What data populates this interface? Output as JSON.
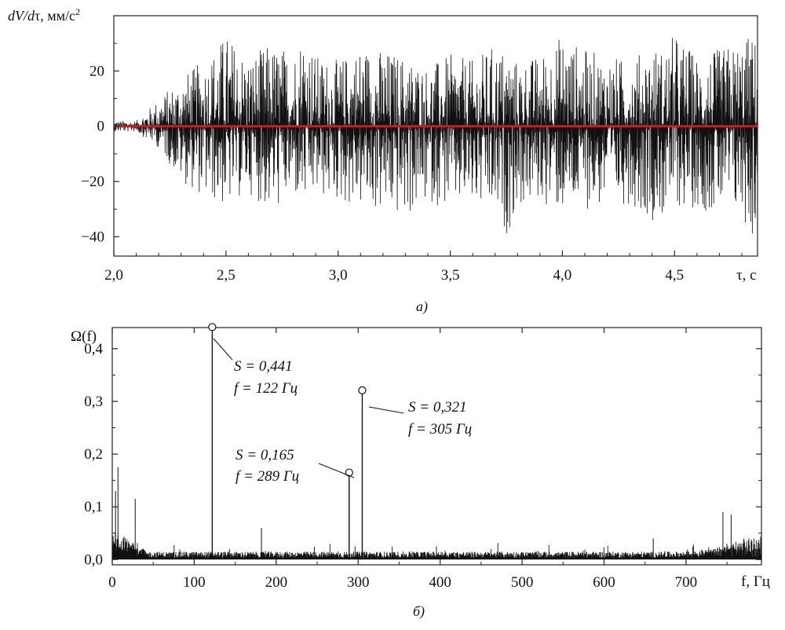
{
  "chart_data": [
    {
      "type": "line",
      "panel_label": "а)",
      "ylabel": "dV/dτ, мм/с²",
      "ylabel_parts": [
        "dV",
        "/",
        "d",
        "τ, мм/с",
        "2"
      ],
      "xlabel": "τ, с",
      "xlim": [
        2.0,
        4.87
      ],
      "ylim": [
        -47,
        40
      ],
      "x_ticks": [
        2.0,
        2.5,
        3.0,
        3.5,
        4.0,
        4.5
      ],
      "x_tick_labels": [
        "2,0",
        "2,5",
        "3,0",
        "3,5",
        "4,0",
        "4,5"
      ],
      "y_ticks": [
        20,
        0,
        -20,
        -40
      ],
      "y_tick_labels": [
        "20",
        "0",
        "−20",
        "−40"
      ],
      "grid": false,
      "series": [
        {
          "role": "signal",
          "color": "#111111",
          "description_points": {
            "x": [
              2.0,
              2.1,
              2.2,
              2.3,
              2.4,
              2.5,
              2.6,
              2.7,
              2.8,
              2.85,
              2.9,
              3.0,
              3.1,
              3.2,
              3.3,
              3.4,
              3.5,
              3.6,
              3.7,
              3.75,
              3.8,
              3.9,
              4.0,
              4.1,
              4.2,
              4.3,
              4.4,
              4.45,
              4.5,
              4.6,
              4.7,
              4.8,
              4.85,
              4.87
            ],
            "upper_envelope": [
              2,
              2,
              10,
              18,
              24,
              34,
              26,
              30,
              28,
              38,
              26,
              24,
              30,
              28,
              26,
              22,
              26,
              24,
              30,
              28,
              24,
              26,
              34,
              28,
              26,
              24,
              30,
              28,
              34,
              26,
              28,
              32,
              34,
              30
            ],
            "lower_envelope": [
              -2,
              -2,
              -8,
              -20,
              -26,
              -30,
              -24,
              -32,
              -26,
              -30,
              -26,
              -28,
              -30,
              -32,
              -34,
              -28,
              -30,
              -30,
              -34,
              -40,
              -30,
              -28,
              -32,
              -30,
              -30,
              -28,
              -34,
              -34,
              -30,
              -30,
              -32,
              -34,
              -42,
              -38
            ]
          }
        },
        {
          "role": "baseline",
          "color": "#c0202a",
          "x": [
            2.0,
            4.87
          ],
          "y": [
            0,
            0
          ]
        }
      ]
    },
    {
      "type": "line",
      "panel_label": "б)",
      "ylabel": "Ω(f)",
      "xlabel": "f, Гц",
      "xlim": [
        0,
        792
      ],
      "ylim": [
        -0.01,
        0.44
      ],
      "x_ticks": [
        0,
        100,
        200,
        300,
        400,
        500,
        600,
        700
      ],
      "x_tick_labels": [
        "0",
        "100",
        "200",
        "300",
        "400",
        "500",
        "600",
        "700"
      ],
      "y_ticks": [
        0.0,
        0.1,
        0.2,
        0.3,
        0.4
      ],
      "y_tick_labels": [
        "0,0",
        "0,1",
        "0,2",
        "0,3",
        "0,4"
      ],
      "grid": false,
      "peaks": [
        {
          "f": 122,
          "S": 0.441,
          "label_S": "S = 0,441",
          "label_f": "f = 122 Гц"
        },
        {
          "f": 289,
          "S": 0.165,
          "label_S": "S = 0,165",
          "label_f": "f = 289 Гц"
        },
        {
          "f": 305,
          "S": 0.321,
          "label_S": "S = 0,321",
          "label_f": "f = 305 Гц"
        }
      ],
      "minor_peaks": [
        {
          "f": 7,
          "S": 0.175
        },
        {
          "f": 4,
          "S": 0.13
        },
        {
          "f": 28,
          "S": 0.115
        },
        {
          "f": 182,
          "S": 0.06
        },
        {
          "f": 660,
          "S": 0.04
        },
        {
          "f": 745,
          "S": 0.09
        },
        {
          "f": 755,
          "S": 0.085
        }
      ],
      "noise_floor": 0.01,
      "color": "#111111"
    }
  ]
}
